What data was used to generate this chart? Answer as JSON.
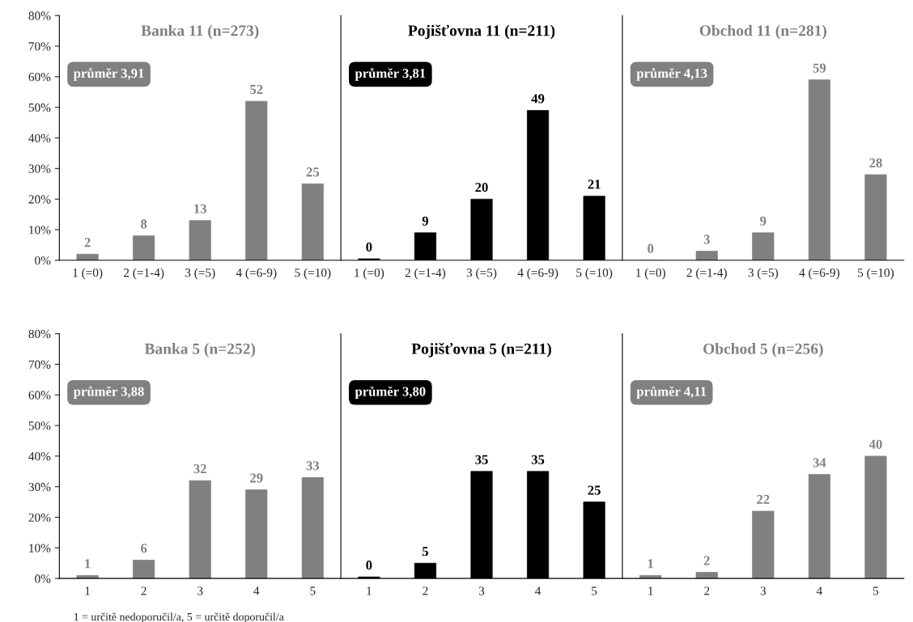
{
  "chart_data": [
    {
      "type": "bar",
      "title": "Banka 11 (n=273)",
      "categories": [
        "1 (=0)",
        "2 (=1-4)",
        "3 (=5)",
        "4 (=6-9)",
        "5 (=10)"
      ],
      "series": [
        {
          "color": "#808080",
          "values": [
            2,
            8,
            13,
            52,
            25
          ],
          "value_labels": [
            "2",
            "8",
            "13",
            "52",
            "25"
          ]
        }
      ],
      "ylim": [
        0,
        80
      ],
      "yticks": [
        {
          "value": 0,
          "label": "0%"
        },
        {
          "value": 10,
          "label": "10%"
        },
        {
          "value": 20,
          "label": "20%"
        },
        {
          "value": 30,
          "label": "30%"
        },
        {
          "value": 40,
          "label": "40%"
        },
        {
          "value": 50,
          "label": "50%"
        },
        {
          "value": 60,
          "label": "60%"
        },
        {
          "value": 70,
          "label": "70%"
        },
        {
          "value": 80,
          "label": "80%"
        }
      ],
      "annotations": [
        "průměr 3,91"
      ],
      "grid": false,
      "legend": false
    },
    {
      "type": "bar",
      "title": "Pojišťovna 11 (n=211)",
      "categories": [
        "1 (=0)",
        "2 (=1-4)",
        "3 (=5)",
        "4 (=6-9)",
        "5 (=10)"
      ],
      "series": [
        {
          "color": "#000000",
          "values": [
            0.5,
            9,
            20,
            49,
            21
          ],
          "value_labels": [
            "0",
            "9",
            "20",
            "49",
            "21"
          ]
        }
      ],
      "ylim": [
        0,
        80
      ],
      "tick_labels": "x",
      "annotations": [
        "průměr 3,81"
      ],
      "grid": false,
      "legend": false
    },
    {
      "type": "bar",
      "title": "Obchod 11 (n=281)",
      "categories": [
        "1 (=0)",
        "2 (=1-4)",
        "3 (=5)",
        "4 (=6-9)",
        "5 (=10)"
      ],
      "series": [
        {
          "color": "#808080",
          "values": [
            0,
            3,
            9,
            59,
            28
          ],
          "value_labels": [
            "0",
            "3",
            "9",
            "59",
            "28"
          ]
        }
      ],
      "ylim": [
        0,
        80
      ],
      "tick_labels": "x",
      "annotations": [
        "průměr 4,13"
      ],
      "grid": false,
      "legend": false
    },
    {
      "type": "bar",
      "title": "Banka 5 (n=252)",
      "categories": [
        "1",
        "2",
        "3",
        "4",
        "5"
      ],
      "series": [
        {
          "color": "#808080",
          "values": [
            1,
            6,
            32,
            29,
            33
          ],
          "value_labels": [
            "1",
            "6",
            "32",
            "29",
            "33"
          ]
        }
      ],
      "ylim": [
        0,
        80
      ],
      "yticks": [
        {
          "value": 0,
          "label": "0%"
        },
        {
          "value": 10,
          "label": "10%"
        },
        {
          "value": 20,
          "label": "20%"
        },
        {
          "value": 30,
          "label": "30%"
        },
        {
          "value": 40,
          "label": "40%"
        },
        {
          "value": 50,
          "label": "50%"
        },
        {
          "value": 60,
          "label": "60%"
        },
        {
          "value": 70,
          "label": "70%"
        },
        {
          "value": 80,
          "label": "80%"
        }
      ],
      "annotations": [
        "průměr 3,88",
        "1 = určitě nedoporučil/a, 5 = určitě doporučil/a"
      ],
      "grid": false,
      "legend": false
    },
    {
      "type": "bar",
      "title": "Pojišťovna 5 (n=211)",
      "categories": [
        "1",
        "2",
        "3",
        "4",
        "5"
      ],
      "series": [
        {
          "color": "#000000",
          "values": [
            0.5,
            5,
            35,
            35,
            25
          ],
          "value_labels": [
            "0",
            "5",
            "35",
            "35",
            "25"
          ]
        }
      ],
      "ylim": [
        0,
        80
      ],
      "tick_labels": "x",
      "annotations": [
        "průměr 3,80"
      ],
      "grid": false,
      "legend": false
    },
    {
      "type": "bar",
      "title": "Obchod 5 (n=256)",
      "categories": [
        "1",
        "2",
        "3",
        "4",
        "5"
      ],
      "series": [
        {
          "color": "#808080",
          "values": [
            1,
            2,
            22,
            34,
            40
          ],
          "value_labels": [
            "1",
            "2",
            "22",
            "34",
            "40"
          ]
        }
      ],
      "ylim": [
        0,
        80
      ],
      "tick_labels": "x",
      "annotations": [
        "průměr 4,11"
      ],
      "grid": false,
      "legend": false
    }
  ]
}
